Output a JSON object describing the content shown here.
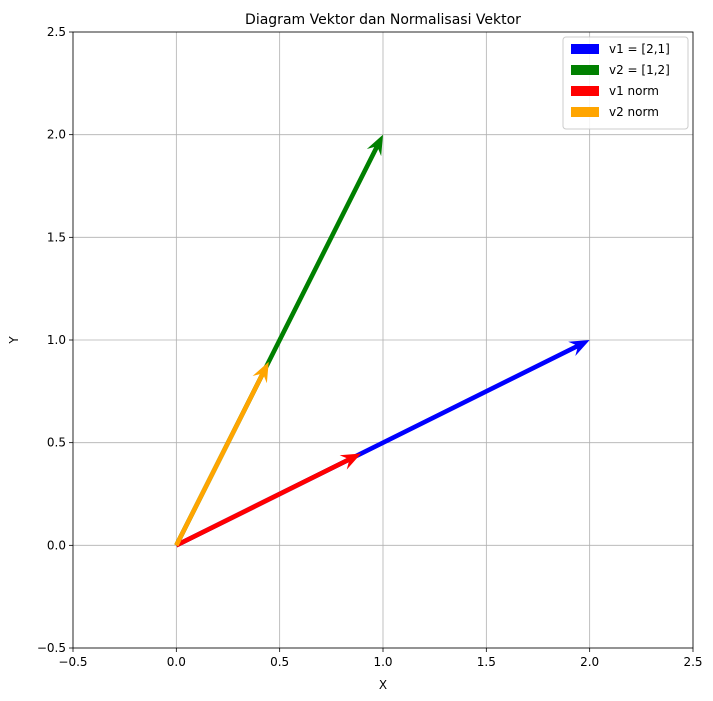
{
  "chart_data": {
    "type": "quiver",
    "title": "Diagram Vektor dan Normalisasi Vektor",
    "xlabel": "X",
    "ylabel": "Y",
    "xlim": [
      -0.5,
      2.5
    ],
    "ylim": [
      -0.5,
      2.5
    ],
    "xticks": [
      "−0.5",
      "0.0",
      "0.5",
      "1.0",
      "1.5",
      "2.0",
      "2.5"
    ],
    "xtick_values": [
      -0.5,
      0.0,
      0.5,
      1.0,
      1.5,
      2.0,
      2.5
    ],
    "yticks": [
      "−0.5",
      "0.0",
      "0.5",
      "1.0",
      "1.5",
      "2.0",
      "2.5"
    ],
    "ytick_values": [
      -0.5,
      0.0,
      0.5,
      1.0,
      1.5,
      2.0,
      2.5
    ],
    "grid": true,
    "legend_position": "top-right",
    "series": [
      {
        "name": "v1 = [2,1]",
        "origin": [
          0,
          0
        ],
        "vector": [
          2,
          1
        ],
        "color": "#0000ff"
      },
      {
        "name": "v2 = [1,2]",
        "origin": [
          0,
          0
        ],
        "vector": [
          1,
          2
        ],
        "color": "#008000"
      },
      {
        "name": "v1 norm",
        "origin": [
          0,
          0
        ],
        "vector": [
          0.894,
          0.447
        ],
        "color": "#ff0000"
      },
      {
        "name": "v2 norm",
        "origin": [
          0,
          0
        ],
        "vector": [
          0.447,
          0.894
        ],
        "color": "#ffa500"
      }
    ]
  }
}
